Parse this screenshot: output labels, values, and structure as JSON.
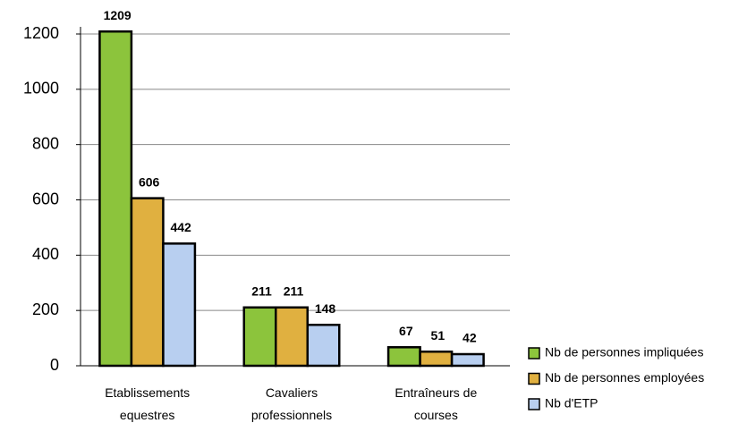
{
  "chart_data": {
    "type": "bar",
    "categories": [
      "Etablissements equestres",
      "Cavaliers professionnels",
      "Entraîneurs de courses"
    ],
    "series": [
      {
        "name": "Nb de personnes impliquées",
        "color": "#8cc43c",
        "values": [
          1209,
          211,
          67
        ]
      },
      {
        "name": "Nb de personnes employées",
        "color": "#e0b040",
        "values": [
          606,
          211,
          51
        ]
      },
      {
        "name": "Nb d'ETP",
        "color": "#b8cff0",
        "values": [
          442,
          148,
          42
        ]
      }
    ],
    "ylim": [
      0,
      1200
    ],
    "yticks": [
      0,
      200,
      400,
      600,
      800,
      1000,
      1200
    ],
    "grid": true,
    "legend": "right"
  }
}
